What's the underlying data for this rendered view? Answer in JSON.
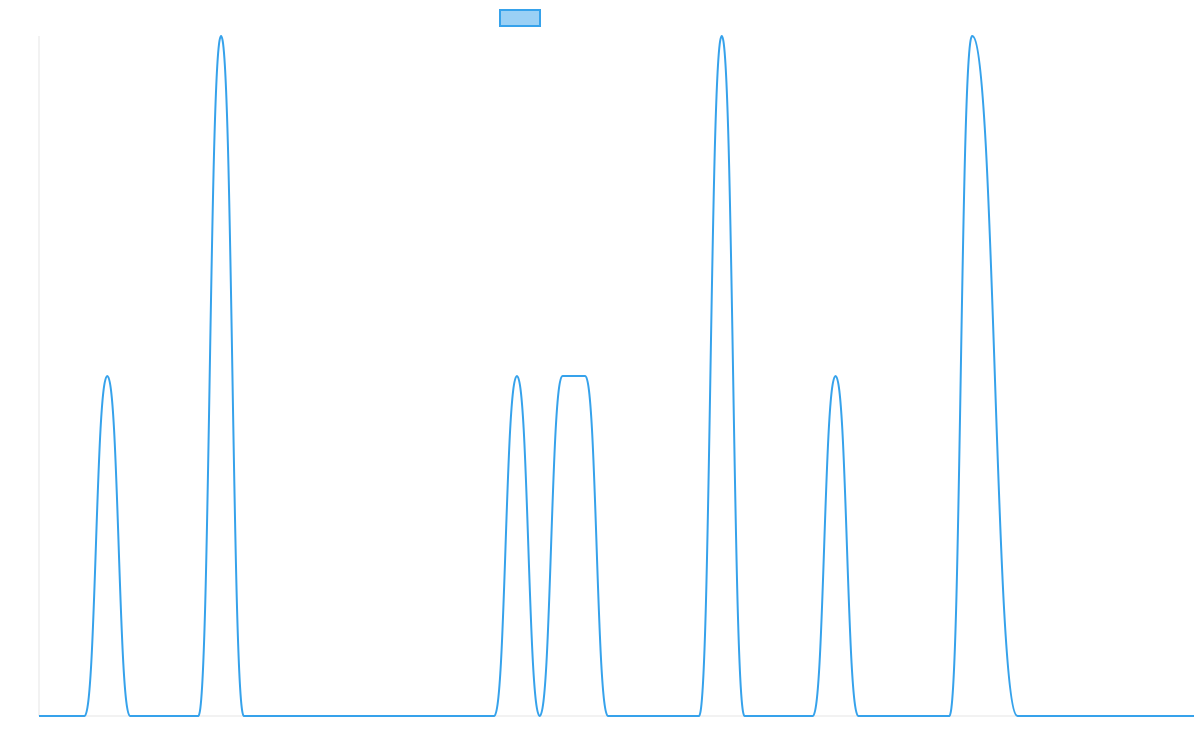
{
  "colors": {
    "series_line": "#36a2eb",
    "legend_fill": "#9ad0f5",
    "axis_line": "#e5e5e5",
    "background": "#ffffff"
  },
  "chart_data": {
    "type": "area",
    "title": "",
    "xlabel": "",
    "ylabel": "",
    "grid": false,
    "legend": {
      "position": "top",
      "entries": [
        {
          "label": "",
          "swatch_color": "#9ad0f5",
          "border_color": "#36a2eb"
        }
      ]
    },
    "x_range": [
      0,
      1015
    ],
    "y_range": [
      0,
      2
    ],
    "series": [
      {
        "color": "#36a2eb",
        "fill": false,
        "points": [
          [
            0,
            0
          ],
          [
            40,
            0
          ],
          [
            60,
            1
          ],
          [
            80,
            0
          ],
          [
            140,
            0
          ],
          [
            160,
            2
          ],
          [
            180,
            0
          ],
          [
            400,
            0
          ],
          [
            420,
            1
          ],
          [
            440,
            0
          ],
          [
            460,
            1
          ],
          [
            480,
            1
          ],
          [
            500,
            0
          ],
          [
            580,
            0
          ],
          [
            600,
            2
          ],
          [
            620,
            0
          ],
          [
            680,
            0
          ],
          [
            700,
            1
          ],
          [
            720,
            0
          ],
          [
            800,
            0
          ],
          [
            820,
            2
          ],
          [
            860,
            0
          ],
          [
            1015,
            0
          ]
        ]
      }
    ]
  }
}
